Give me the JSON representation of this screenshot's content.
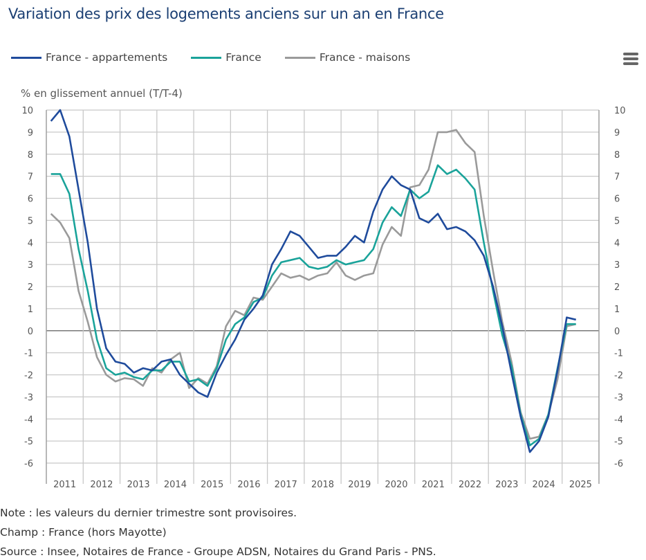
{
  "chart_data": {
    "type": "line",
    "title": "Variation des prix des logements anciens sur un an en France",
    "ylabel": "% en glissement annuel (T/T-4)",
    "xlabel": "",
    "ylim": [
      -6,
      10
    ],
    "yticks": [
      "10",
      "9",
      "8",
      "7",
      "6",
      "5",
      "4",
      "3",
      "2",
      "1",
      "0",
      "-1",
      "-2",
      "-3",
      "-4",
      "-5",
      "-6"
    ],
    "xticks": [
      "2011",
      "2012",
      "2013",
      "2014",
      "2015",
      "2016",
      "2017",
      "2018",
      "2019",
      "2020",
      "2021",
      "2022",
      "2023",
      "2024",
      "2025"
    ],
    "x_start": "2011-T1",
    "x_end": "2025-T2",
    "frequency": "quarterly",
    "grid": true,
    "legend_position": "top-left",
    "series": [
      {
        "name": "France - appartements",
        "color": "#1f4b9c",
        "values": [
          9.5,
          10.0,
          8.8,
          6.4,
          4.0,
          1.0,
          -0.8,
          -1.4,
          -1.5,
          -1.9,
          -1.7,
          -1.8,
          -1.4,
          -1.3,
          -2.0,
          -2.4,
          -2.8,
          -3.0,
          -1.9,
          -1.1,
          -0.4,
          0.5,
          1.0,
          1.6,
          3.0,
          3.7,
          4.5,
          4.3,
          3.8,
          3.3,
          3.4,
          3.4,
          3.8,
          4.3,
          4.0,
          5.4,
          6.4,
          7.0,
          6.6,
          6.4,
          5.1,
          4.9,
          5.3,
          4.6,
          4.7,
          4.5,
          4.1,
          3.4,
          2.0,
          0.2,
          -1.9,
          -3.9,
          -5.5,
          -5.0,
          -3.9,
          -1.8,
          0.6,
          0.5
        ]
      },
      {
        "name": "France",
        "color": "#1aa39a",
        "values": [
          7.1,
          7.1,
          6.2,
          3.7,
          1.8,
          -0.4,
          -1.7,
          -2.0,
          -1.9,
          -2.1,
          -2.2,
          -1.8,
          -1.8,
          -1.4,
          -1.4,
          -2.3,
          -2.2,
          -2.5,
          -1.7,
          -0.4,
          0.3,
          0.6,
          1.3,
          1.5,
          2.5,
          3.1,
          3.2,
          3.3,
          2.9,
          2.8,
          2.9,
          3.2,
          3.0,
          3.1,
          3.2,
          3.7,
          4.9,
          5.6,
          5.2,
          6.4,
          6.0,
          6.3,
          7.5,
          7.1,
          7.3,
          6.9,
          6.4,
          4.0,
          1.8,
          -0.2,
          -1.6,
          -3.8,
          -5.2,
          -4.9,
          -3.8,
          -1.7,
          0.3,
          0.3
        ]
      },
      {
        "name": "France - maisons",
        "color": "#9a9a9a",
        "values": [
          5.3,
          4.9,
          4.2,
          1.8,
          0.4,
          -1.2,
          -2.0,
          -2.3,
          -2.15,
          -2.2,
          -2.5,
          -1.7,
          -1.9,
          -1.3,
          -1.0,
          -2.6,
          -2.15,
          -2.4,
          -1.6,
          0.2,
          0.9,
          0.7,
          1.5,
          1.4,
          2.0,
          2.6,
          2.4,
          2.5,
          2.3,
          2.5,
          2.6,
          3.1,
          2.5,
          2.3,
          2.5,
          2.6,
          3.9,
          4.7,
          4.3,
          6.5,
          6.6,
          7.3,
          9.0,
          9.0,
          9.1,
          8.5,
          8.1,
          5.2,
          2.7,
          0.4,
          -1.4,
          -3.7,
          -4.9,
          -4.8,
          -3.8,
          -2.2,
          0.2,
          0.3
        ]
      }
    ]
  },
  "menu_icon": "hamburger-menu-icon",
  "notes": [
    "Note : les valeurs du dernier trimestre sont provisoires.",
    "Champ : France (hors Mayotte)",
    "Source : Insee, Notaires de France - Groupe ADSN, Notaires du Grand Paris - PNS."
  ]
}
